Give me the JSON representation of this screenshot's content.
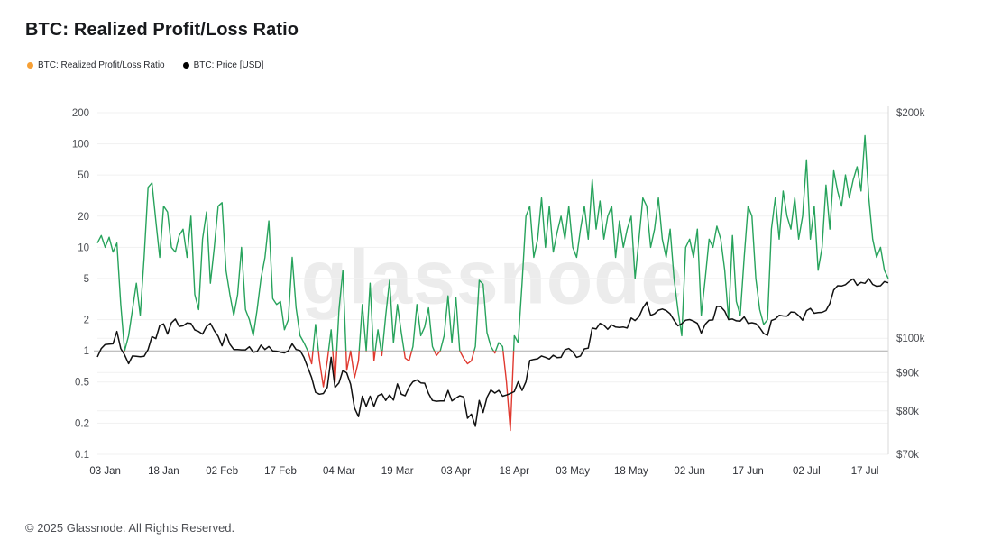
{
  "page": {
    "title": "BTC: Realized Profit/Loss Ratio",
    "watermark": "glassnode",
    "footer": "© 2025 Glassnode. All Rights Reserved."
  },
  "legend": [
    {
      "label": "BTC: Realized Profit/Loss Ratio",
      "color": "#f7a035"
    },
    {
      "label": "BTC: Price [USD]",
      "color": "#000000"
    }
  ],
  "chart_data": {
    "type": "line",
    "title": "BTC: Realized Profit/Loss Ratio",
    "x_ticks": [
      {
        "label": "03 Jan",
        "index": 2
      },
      {
        "label": "18 Jan",
        "index": 17
      },
      {
        "label": "02 Feb",
        "index": 32
      },
      {
        "label": "17 Feb",
        "index": 47
      },
      {
        "label": "04 Mar",
        "index": 62
      },
      {
        "label": "19 Mar",
        "index": 77
      },
      {
        "label": "03 Apr",
        "index": 92
      },
      {
        "label": "18 Apr",
        "index": 107
      },
      {
        "label": "03 May",
        "index": 122
      },
      {
        "label": "18 May",
        "index": 137
      },
      {
        "label": "02 Jun",
        "index": 152
      },
      {
        "label": "17 Jun",
        "index": 167
      },
      {
        "label": "02 Jul",
        "index": 182
      },
      {
        "label": "17 Jul",
        "index": 197
      }
    ],
    "left_axis": {
      "scale": "log",
      "range": [
        0.1,
        200
      ],
      "ticks": [
        0.1,
        0.2,
        0.5,
        1,
        2,
        5,
        10,
        20,
        50,
        100,
        200
      ],
      "tick_labels": [
        "0.1",
        "0.2",
        "0.5",
        "1",
        "2",
        "5",
        "10",
        "20",
        "50",
        "100",
        "200"
      ]
    },
    "right_axis": {
      "scale": "log",
      "range": [
        70,
        200
      ],
      "unit": "USD thousands",
      "ticks": [
        70,
        80,
        90,
        100,
        200
      ],
      "tick_labels": [
        "$70k",
        "$80k",
        "$90k",
        "$100k",
        "$200k"
      ]
    },
    "baseline": 1,
    "series": [
      {
        "name": "BTC: Realized Profit/Loss Ratio",
        "axis": "left",
        "color_above_baseline": "#27a35c",
        "color_below_baseline": "#e0392f",
        "values": [
          11,
          13,
          10,
          12.5,
          9,
          11,
          2.8,
          1.0,
          1.4,
          2.5,
          4.5,
          2.2,
          8,
          38,
          42,
          18,
          8,
          25,
          22,
          10,
          9,
          13,
          15,
          8,
          20,
          3.5,
          2.5,
          12,
          22,
          4.5,
          10,
          25,
          27,
          6,
          3.5,
          2.2,
          3.5,
          10,
          2.5,
          2.0,
          1.4,
          2.5,
          5,
          8,
          18,
          3.2,
          2.8,
          3.0,
          1.6,
          2.0,
          8,
          2.6,
          1.4,
          1.2,
          1.0,
          0.75,
          1.8,
          0.8,
          0.45,
          0.8,
          1.6,
          0.5,
          2.5,
          6,
          0.65,
          1.0,
          0.55,
          0.8,
          2.8,
          1.0,
          4.5,
          0.8,
          1.6,
          0.9,
          2.2,
          4.8,
          1.2,
          2.8,
          1.5,
          0.85,
          0.8,
          1.1,
          2.8,
          1.4,
          1.7,
          2.6,
          1.1,
          0.9,
          1.0,
          1.4,
          3.4,
          1.2,
          3.3,
          1.0,
          0.85,
          0.75,
          0.8,
          1.1,
          4.8,
          4.4,
          1.5,
          1.1,
          0.95,
          1.2,
          1.1,
          0.5,
          0.17,
          1.4,
          1.2,
          4.5,
          20,
          25,
          8,
          12,
          30,
          10,
          25,
          9,
          14,
          20,
          12,
          25,
          10,
          8,
          15,
          25,
          12,
          45,
          15,
          28,
          12,
          20,
          25,
          8,
          18,
          10,
          15,
          20,
          5,
          12,
          30,
          25,
          10,
          15,
          30,
          12,
          8,
          15,
          5,
          2.5,
          1.4,
          10,
          12,
          8,
          15,
          2.2,
          5,
          12,
          10,
          16,
          12,
          6,
          2.0,
          13,
          3,
          2.2,
          8,
          25,
          20,
          5,
          2.5,
          1.8,
          2.0,
          15,
          30,
          12,
          35,
          20,
          15,
          30,
          12,
          20,
          70,
          12,
          25,
          6,
          10,
          40,
          15,
          55,
          35,
          25,
          50,
          30,
          45,
          60,
          35,
          120,
          30,
          12,
          8,
          10,
          6,
          5
        ]
      },
      {
        "name": "BTC: Price [USD]",
        "axis": "right",
        "color": "#111111",
        "values": [
          94.4,
          96.9,
          98.1,
          98.2,
          98.3,
          102.1,
          96.9,
          95.0,
          92.5,
          94.7,
          94.6,
          94.5,
          94.6,
          96.6,
          100.5,
          99.9,
          104.0,
          104.5,
          101.3,
          104.9,
          106.1,
          103.7,
          103.9,
          104.8,
          104.7,
          102.6,
          102.1,
          101.3,
          103.7,
          104.7,
          102.4,
          100.6,
          97.7,
          101.4,
          98.2,
          96.6,
          96.6,
          96.5,
          96.5,
          97.4,
          95.8,
          96.0,
          97.9,
          96.6,
          97.5,
          96.2,
          96.1,
          95.8,
          95.6,
          96.2,
          98.3,
          96.6,
          96.3,
          94.3,
          91.4,
          88.6,
          84.7,
          84.2,
          84.4,
          86.0,
          94.3,
          86.0,
          87.2,
          90.6,
          89.9,
          86.8,
          80.7,
          78.6,
          83.7,
          81.1,
          83.7,
          81.1,
          83.8,
          84.3,
          82.6,
          84.0,
          82.7,
          86.9,
          84.2,
          83.8,
          86.1,
          87.5,
          88.0,
          87.2,
          87.1,
          84.4,
          82.6,
          82.4,
          82.5,
          82.5,
          85.2,
          82.5,
          83.2,
          83.8,
          83.5,
          78.2,
          79.2,
          76.3,
          82.6,
          79.6,
          83.4,
          85.3,
          84.5,
          85.2,
          83.7,
          84.0,
          84.4,
          84.9,
          87.5,
          85.2,
          87.5,
          93.4,
          93.7,
          93.9,
          94.7,
          94.3,
          93.8,
          94.9,
          94.2,
          94.3,
          96.5,
          96.9,
          95.9,
          94.3,
          94.7,
          96.8,
          97.0,
          103.2,
          102.9,
          104.7,
          104.1,
          102.8,
          104.2,
          103.5,
          103.4,
          103.5,
          103.2,
          106.4,
          105.6,
          106.8,
          109.7,
          111.7,
          107.3,
          107.8,
          109.0,
          109.4,
          108.9,
          107.8,
          105.7,
          103.9,
          104.6,
          105.7,
          105.9,
          105.4,
          104.7,
          101.6,
          104.4,
          105.7,
          105.8,
          110.3,
          110.2,
          108.7,
          105.9,
          106.1,
          105.5,
          105.4,
          106.8,
          104.7,
          104.9,
          104.6,
          103.3,
          101.5,
          100.9,
          105.6,
          106.1,
          107.3,
          107.1,
          107.0,
          108.4,
          108.3,
          107.2,
          105.7,
          108.8,
          109.6,
          108.0,
          108.2,
          108.3,
          108.9,
          111.3,
          116.0,
          117.5,
          117.4,
          117.9,
          119.1,
          120.0,
          117.7,
          118.7,
          118.4,
          120.1,
          118.0,
          117.3,
          117.5,
          119.0,
          118.6
        ]
      }
    ]
  }
}
